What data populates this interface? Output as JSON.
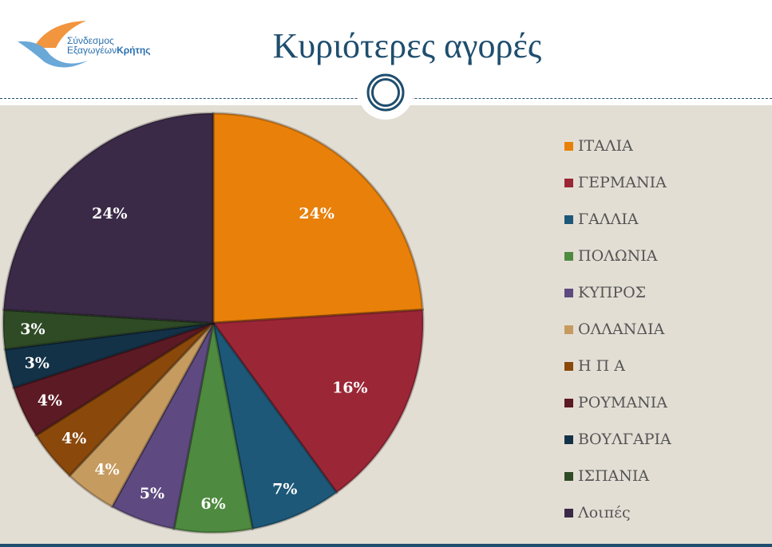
{
  "header": {
    "title": "Κυριότερες αγορές",
    "logo_line1": "Σύνδεσμος",
    "logo_line2a": "Εξαγωγέων",
    "logo_line2b": "Κρήτης"
  },
  "chart_data": {
    "type": "pie",
    "title": "Κυριότερες αγορές",
    "categories": [
      "ΙΤΑΛΙΑ",
      "ΓΕΡΜΑΝΙΑ",
      "ΓΑΛΛΙΑ",
      "ΠΟΛΩΝΙΑ",
      "ΚΥΠΡΟΣ",
      "ΟΛΛΑΝΔΙΑ",
      "Η Π Α",
      "ΡΟΥΜΑΝΙΑ",
      "ΒΟΥΛΓΑΡΙΑ",
      "ΙΣΠΑΝΙΑ",
      "Λοιπές"
    ],
    "values": [
      24,
      16,
      7,
      6,
      5,
      4,
      4,
      4,
      3,
      3,
      24
    ],
    "labels": [
      "24%",
      "16%",
      "7%",
      "6%",
      "5%",
      "4%",
      "4%",
      "4%",
      "3%",
      "3%",
      "24%"
    ],
    "colors": [
      "#e8800a",
      "#9b2636",
      "#1d5878",
      "#4e8a3f",
      "#5e4a80",
      "#c69b5f",
      "#8a480a",
      "#5c1a24",
      "#133247",
      "#2f4b26",
      "#3a2a47"
    ],
    "legend_position": "right"
  }
}
